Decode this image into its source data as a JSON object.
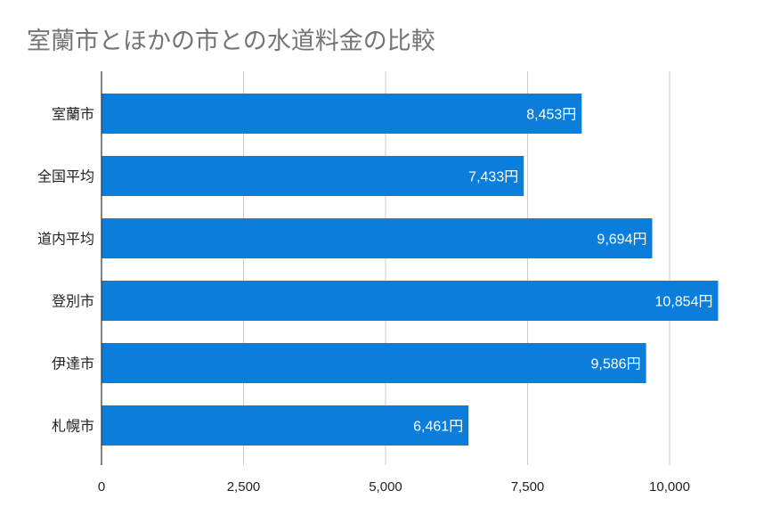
{
  "chart_data": {
    "type": "bar",
    "orientation": "horizontal",
    "title": "室蘭市とほかの市との水道料金の比較",
    "categories": [
      "室蘭市",
      "全国平均",
      "道内平均",
      "登別市",
      "伊達市",
      "札幌市"
    ],
    "values": [
      8453,
      7433,
      9694,
      10854,
      9586,
      6461
    ],
    "data_labels": [
      "8,453円",
      "7,433円",
      "9,694円",
      "10,854円",
      "9,586円",
      "6,461円"
    ],
    "xlim": [
      0,
      10000
    ],
    "x_ticks": [
      0,
      2500,
      5000,
      7500,
      10000
    ],
    "x_tick_labels": [
      "0",
      "2,500",
      "5,000",
      "7,500",
      "10,000"
    ],
    "grid": true,
    "xlabel": "",
    "ylabel": "",
    "bar_color": "#0b7dda",
    "title_color": "#757575"
  }
}
